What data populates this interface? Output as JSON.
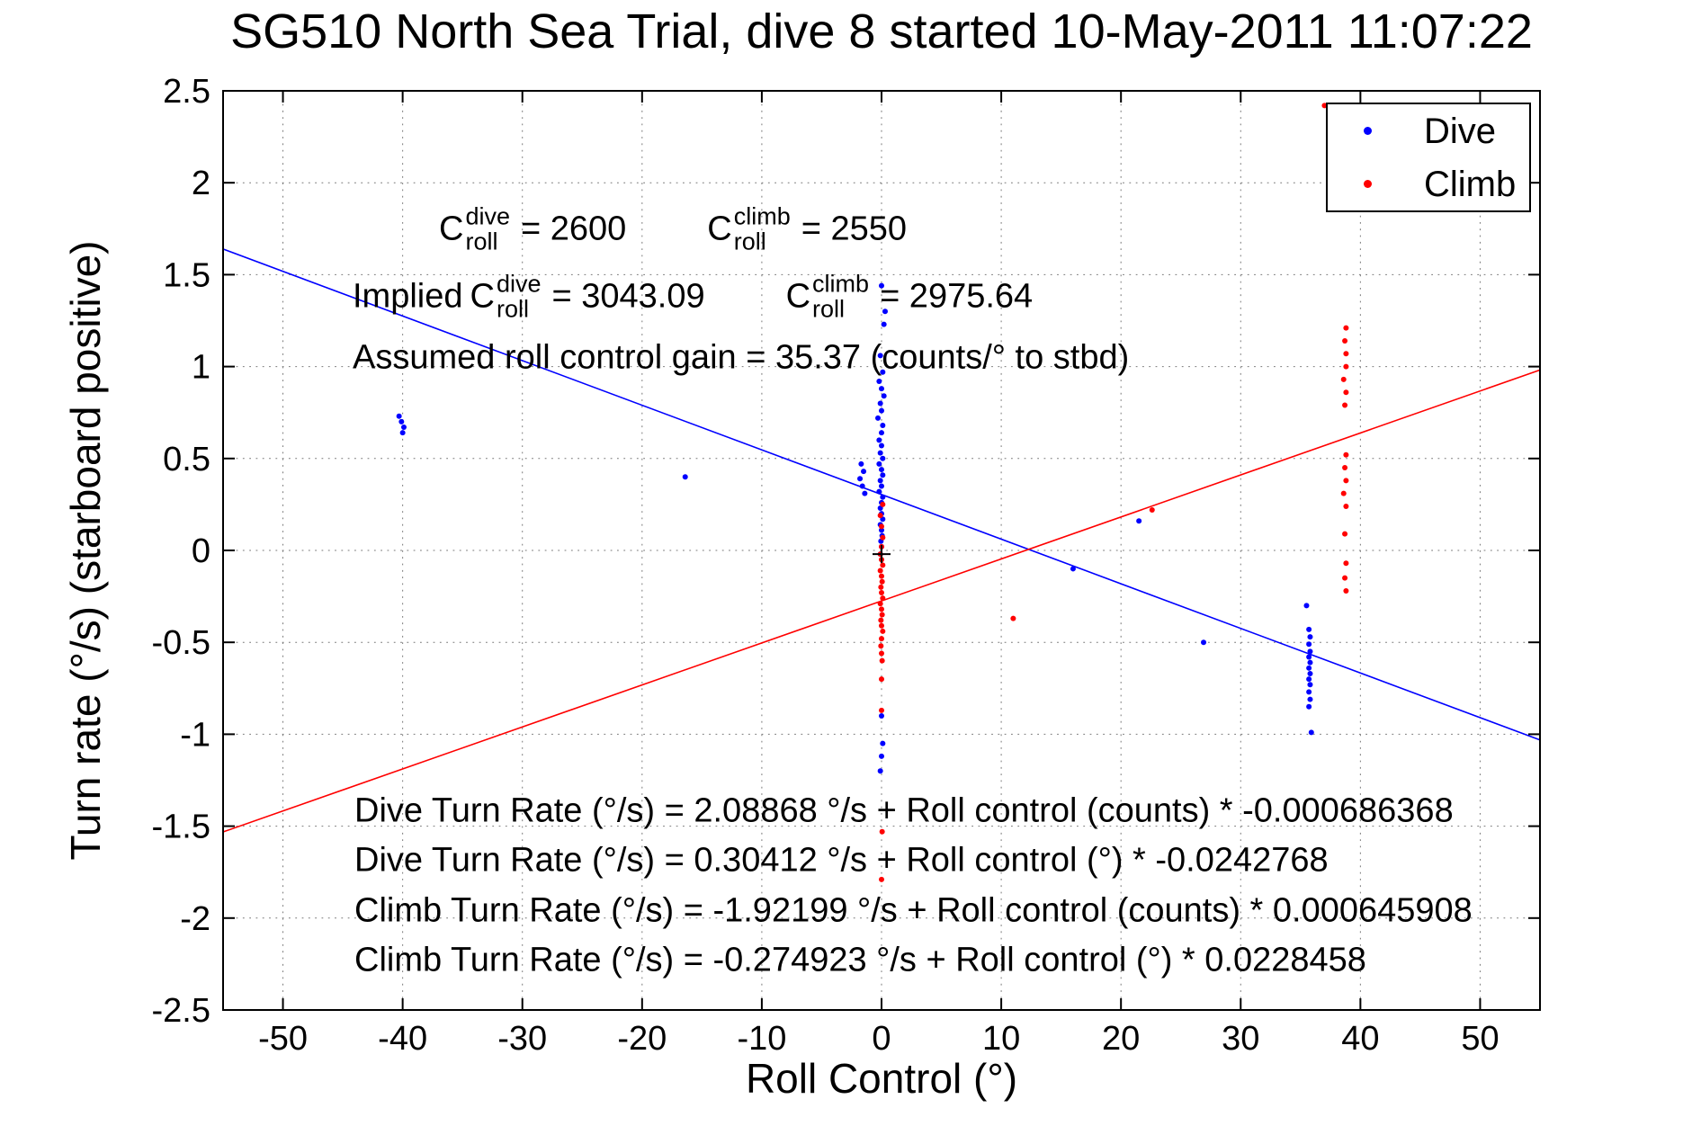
{
  "title": "SG510 North Sea Trial, dive 8 started 10-May-2011 11:07:22",
  "axes": {
    "xlabel": "Roll Control (°)",
    "ylabel": "Turn rate (°/s) (starboard positive)"
  },
  "legend": {
    "items": [
      {
        "label": "Dive",
        "color": "#0000ff"
      },
      {
        "label": "Climb",
        "color": "#ff0000"
      }
    ]
  },
  "annotations": {
    "line1": {
      "e1": {
        "pre": "C",
        "sup": "dive",
        "sub": "roll",
        "rest": "= 2600"
      },
      "e2": {
        "pre": "C",
        "sup": "climb",
        "sub": "roll",
        "rest": "= 2550"
      }
    },
    "line2": {
      "prefix": "Implied ",
      "e1": {
        "pre": "C",
        "sup": "dive",
        "sub": "roll",
        "rest": "= 3043.09"
      },
      "e2": {
        "pre": "C",
        "sup": "climb",
        "sub": "roll",
        "rest": "= 2975.64"
      }
    },
    "line3": "Assumed roll control gain = 35.37 (counts/° to stbd)",
    "equations": [
      "Dive Turn Rate (°/s) = 2.08868 °/s + Roll control (counts) * -0.000686368",
      "Dive Turn Rate (°/s) = 0.30412 °/s + Roll control (°) * -0.0242768",
      "Climb Turn Rate (°/s) = -1.92199 °/s + Roll control (counts) * 0.000645908",
      "Climb Turn Rate (°/s) = -0.274923 °/s + Roll control (°) * 0.0228458"
    ]
  },
  "chart_data": {
    "type": "scatter",
    "title": "SG510 North Sea Trial, dive 8 started 10-May-2011 11:07:22",
    "xlabel": "Roll Control (°)",
    "ylabel": "Turn rate (°/s) (starboard positive)",
    "xlim": [
      -55,
      55
    ],
    "ylim": [
      -2.5,
      2.5
    ],
    "xticks": [
      -50,
      -40,
      -30,
      -20,
      -10,
      0,
      10,
      20,
      30,
      40,
      50
    ],
    "yticks": [
      -2.5,
      -2,
      -1.5,
      -1,
      -0.5,
      0,
      0.5,
      1,
      1.5,
      2,
      2.5
    ],
    "grid": true,
    "grid_style": "dotted",
    "legend_position": "northeast",
    "series": [
      {
        "name": "Dive",
        "color": "#0000ff",
        "marker": "point",
        "points": [
          [
            -40.3,
            0.73
          ],
          [
            -40.1,
            0.7
          ],
          [
            -39.9,
            0.67
          ],
          [
            -40.0,
            0.64
          ],
          [
            -16.4,
            0.4
          ],
          [
            0.0,
            1.44
          ],
          [
            0.3,
            1.3
          ],
          [
            0.2,
            1.23
          ],
          [
            -0.1,
            1.06
          ],
          [
            0.1,
            0.97
          ],
          [
            -0.2,
            0.92
          ],
          [
            0.0,
            0.88
          ],
          [
            0.2,
            0.84
          ],
          [
            -0.1,
            0.8
          ],
          [
            0.0,
            0.76
          ],
          [
            -0.3,
            0.72
          ],
          [
            0.1,
            0.68
          ],
          [
            0.0,
            0.64
          ],
          [
            -0.2,
            0.6
          ],
          [
            0.0,
            0.57
          ],
          [
            -0.1,
            0.53
          ],
          [
            0.1,
            0.5
          ],
          [
            -0.2,
            0.47
          ],
          [
            0.0,
            0.44
          ],
          [
            0.1,
            0.41
          ],
          [
            -0.1,
            0.38
          ],
          [
            0.0,
            0.35
          ],
          [
            -0.2,
            0.32
          ],
          [
            0.1,
            0.29
          ],
          [
            0.0,
            0.26
          ],
          [
            -0.1,
            0.23
          ],
          [
            0.0,
            0.2
          ],
          [
            0.1,
            0.17
          ],
          [
            -0.1,
            0.14
          ],
          [
            0.0,
            0.11
          ],
          [
            0.05,
            0.08
          ],
          [
            -0.05,
            0.05
          ],
          [
            0.0,
            0.02
          ],
          [
            -0.1,
            -0.02
          ],
          [
            -1.7,
            0.47
          ],
          [
            -1.5,
            0.43
          ],
          [
            -1.8,
            0.39
          ],
          [
            -1.6,
            0.35
          ],
          [
            -1.4,
            0.31
          ],
          [
            0.0,
            -0.9
          ],
          [
            0.1,
            -1.05
          ],
          [
            0.0,
            -1.12
          ],
          [
            -0.1,
            -1.2
          ],
          [
            35.7,
            -0.43
          ],
          [
            35.8,
            -0.47
          ],
          [
            35.7,
            -0.51
          ],
          [
            35.8,
            -0.55
          ],
          [
            35.7,
            -0.58
          ],
          [
            35.8,
            -0.61
          ],
          [
            35.7,
            -0.64
          ],
          [
            35.8,
            -0.67
          ],
          [
            35.7,
            -0.7
          ],
          [
            35.8,
            -0.73
          ],
          [
            35.7,
            -0.77
          ],
          [
            35.8,
            -0.81
          ],
          [
            35.7,
            -0.85
          ],
          [
            35.9,
            -0.99
          ],
          [
            35.5,
            -0.3
          ],
          [
            26.9,
            -0.5
          ],
          [
            21.5,
            0.16
          ],
          [
            16.0,
            -0.1
          ]
        ]
      },
      {
        "name": "Climb",
        "color": "#ff0000",
        "marker": "point",
        "points": [
          [
            37.0,
            2.42
          ],
          [
            38.8,
            1.21
          ],
          [
            38.7,
            1.14
          ],
          [
            38.8,
            1.07
          ],
          [
            38.8,
            1.0
          ],
          [
            38.6,
            0.93
          ],
          [
            38.8,
            0.86
          ],
          [
            38.7,
            0.79
          ],
          [
            38.8,
            0.52
          ],
          [
            38.7,
            0.45
          ],
          [
            38.8,
            0.38
          ],
          [
            38.6,
            0.31
          ],
          [
            38.8,
            0.24
          ],
          [
            38.7,
            0.09
          ],
          [
            38.8,
            -0.07
          ],
          [
            38.7,
            -0.15
          ],
          [
            38.8,
            -0.22
          ],
          [
            0.1,
            0.25
          ],
          [
            -0.1,
            0.19
          ],
          [
            0.0,
            0.13
          ],
          [
            0.1,
            0.07
          ],
          [
            0.0,
            0.02
          ],
          [
            -0.1,
            -0.02
          ],
          [
            0.0,
            -0.05
          ],
          [
            0.1,
            -0.08
          ],
          [
            -0.1,
            -0.11
          ],
          [
            0.0,
            -0.14
          ],
          [
            0.05,
            -0.17
          ],
          [
            -0.05,
            -0.2
          ],
          [
            0.0,
            -0.23
          ],
          [
            0.1,
            -0.26
          ],
          [
            -0.1,
            -0.29
          ],
          [
            0.0,
            -0.32
          ],
          [
            0.05,
            -0.35
          ],
          [
            -0.05,
            -0.38
          ],
          [
            0.0,
            -0.41
          ],
          [
            0.1,
            -0.44
          ],
          [
            0.0,
            -0.48
          ],
          [
            -0.05,
            -0.52
          ],
          [
            0.0,
            -0.56
          ],
          [
            0.05,
            -0.6
          ],
          [
            0.0,
            -0.7
          ],
          [
            0.0,
            -0.87
          ],
          [
            0.05,
            -1.53
          ],
          [
            0.0,
            -1.79
          ],
          [
            22.6,
            0.22
          ],
          [
            11.0,
            -0.37
          ]
        ]
      }
    ],
    "fit_lines": [
      {
        "name": "dive-fit",
        "color": "#0000ff",
        "intercept": 0.30412,
        "slope": -0.0242768
      },
      {
        "name": "climb-fit",
        "color": "#ff0000",
        "intercept": -0.274923,
        "slope": 0.0228458
      }
    ],
    "origin_marker": {
      "x": 0,
      "y": -0.02,
      "type": "plus",
      "color": "#000000"
    }
  }
}
